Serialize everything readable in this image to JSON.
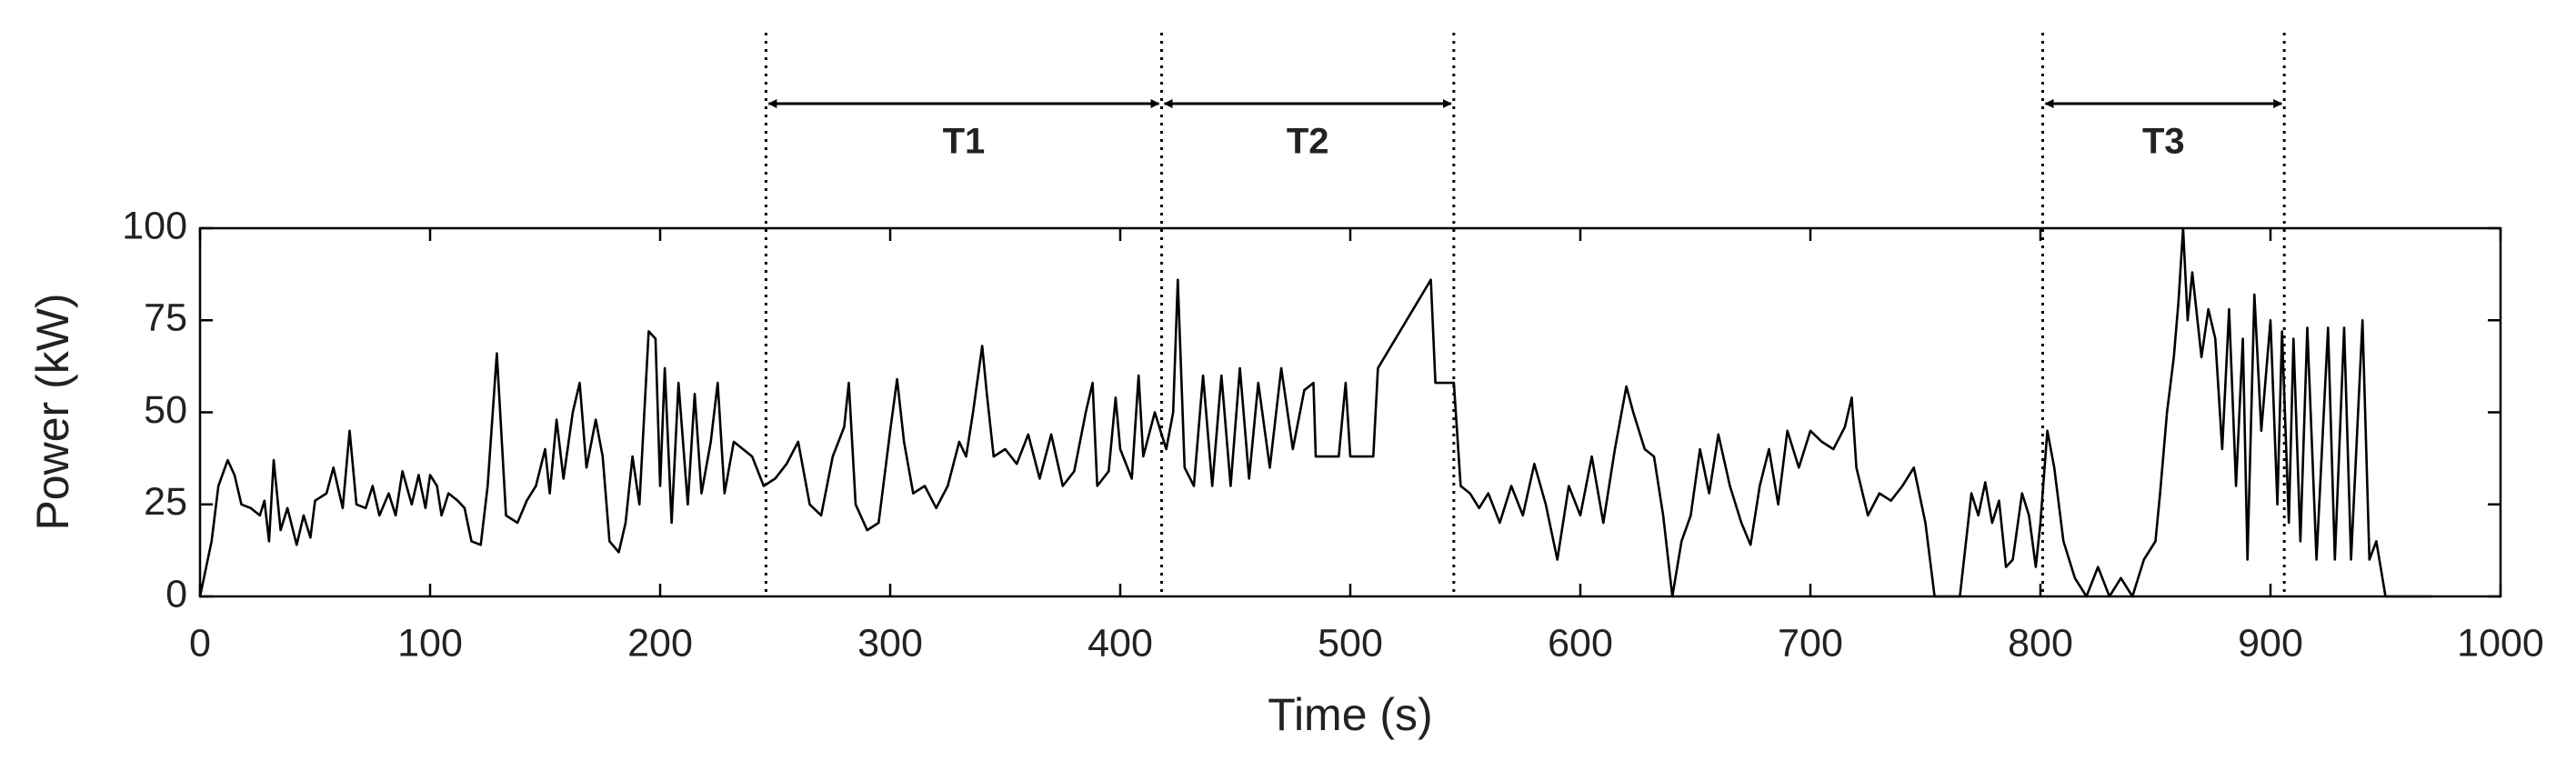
{
  "chart_data": {
    "type": "line",
    "xlabel": "Time (s)",
    "ylabel": "Power (kW)",
    "color": "#000000",
    "x": [
      0,
      5,
      8,
      12,
      15,
      18,
      22,
      26,
      28,
      30,
      32,
      35,
      38,
      42,
      45,
      48,
      50,
      55,
      58,
      62,
      65,
      68,
      72,
      75,
      78,
      82,
      85,
      88,
      92,
      95,
      98,
      100,
      103,
      105,
      108,
      112,
      115,
      118,
      122,
      125,
      129,
      133,
      138,
      142,
      146,
      150,
      152,
      155,
      158,
      162,
      165,
      168,
      172,
      175,
      178,
      182,
      185,
      188,
      191,
      195,
      198,
      200,
      202,
      205,
      208,
      212,
      215,
      218,
      222,
      225,
      228,
      232,
      236,
      240,
      245,
      250,
      255,
      260,
      265,
      270,
      275,
      280,
      282,
      285,
      290,
      295,
      300,
      303,
      306,
      310,
      315,
      320,
      325,
      330,
      333,
      336,
      340,
      342,
      345,
      350,
      355,
      360,
      365,
      370,
      375,
      380,
      385,
      388,
      390,
      395,
      398,
      400,
      405,
      408,
      410,
      415,
      418,
      420,
      423,
      425,
      428,
      432,
      436,
      440,
      444,
      448,
      452,
      456,
      460,
      465,
      470,
      475,
      480,
      484,
      485,
      495,
      498,
      500,
      510,
      512,
      535,
      537,
      545,
      548,
      552,
      556,
      560,
      565,
      570,
      575,
      580,
      585,
      590,
      595,
      600,
      605,
      610,
      615,
      620,
      623,
      628,
      632,
      636,
      640,
      644,
      648,
      652,
      656,
      660,
      665,
      670,
      674,
      678,
      682,
      686,
      690,
      695,
      700,
      705,
      710,
      715,
      718,
      720,
      725,
      730,
      735,
      740,
      745,
      750,
      754,
      765,
      770,
      773,
      776,
      779,
      782,
      785,
      788,
      792,
      795,
      798,
      800,
      803,
      806,
      810,
      815,
      820,
      825,
      830,
      835,
      840,
      845,
      850,
      852,
      855,
      858,
      860,
      862,
      864,
      866,
      870,
      873,
      876,
      879,
      882,
      885,
      888,
      890,
      893,
      896,
      900,
      903,
      905,
      908,
      910,
      913,
      916,
      920,
      925,
      928,
      932,
      935,
      940,
      943,
      946,
      950,
      970
    ],
    "values": [
      0,
      15,
      30,
      37,
      33,
      25,
      24,
      22,
      26,
      15,
      37,
      18,
      24,
      14,
      22,
      16,
      26,
      28,
      35,
      24,
      45,
      25,
      24,
      30,
      22,
      28,
      22,
      34,
      25,
      33,
      24,
      33,
      30,
      22,
      28,
      26,
      24,
      15,
      14,
      30,
      66,
      22,
      20,
      26,
      30,
      40,
      28,
      48,
      32,
      50,
      58,
      35,
      48,
      38,
      15,
      12,
      20,
      38,
      25,
      72,
      70,
      30,
      62,
      20,
      58,
      25,
      55,
      28,
      42,
      58,
      28,
      42,
      40,
      38,
      30,
      32,
      36,
      42,
      25,
      22,
      38,
      46,
      58,
      25,
      18,
      20,
      45,
      59,
      42,
      28,
      30,
      24,
      30,
      42,
      38,
      50,
      68,
      55,
      38,
      40,
      36,
      44,
      32,
      44,
      30,
      34,
      50,
      58,
      30,
      34,
      54,
      40,
      32,
      60,
      38,
      50,
      44,
      40,
      50,
      86,
      35,
      30,
      60,
      30,
      60,
      30,
      62,
      32,
      58,
      35,
      62,
      40,
      56,
      58,
      38,
      38,
      58,
      38,
      38,
      62,
      86,
      58,
      58,
      30,
      28,
      24,
      28,
      20,
      30,
      22,
      36,
      25,
      10,
      30,
      22,
      38,
      20,
      40,
      57,
      50,
      40,
      38,
      22,
      0,
      15,
      22,
      40,
      28,
      44,
      30,
      20,
      14,
      30,
      40,
      25,
      45,
      35,
      45,
      42,
      40,
      46,
      54,
      35,
      22,
      28,
      26,
      30,
      35,
      20,
      0,
      0,
      28,
      22,
      31,
      20,
      26,
      8,
      10,
      28,
      22,
      8,
      20,
      45,
      35,
      15,
      5,
      0,
      8,
      0,
      5,
      0,
      10,
      15,
      28,
      50,
      65,
      80,
      100,
      75,
      88,
      65,
      78,
      70,
      40,
      78,
      30,
      70,
      10,
      82,
      45,
      75,
      25,
      72,
      20,
      70,
      15,
      73,
      10,
      73,
      10,
      73,
      10,
      75,
      10,
      15,
      0,
      0
    ],
    "xlim": [
      0,
      1000
    ],
    "ylim": [
      0,
      100
    ],
    "xticks": [
      0,
      100,
      200,
      300,
      400,
      500,
      600,
      700,
      800,
      900,
      1000
    ],
    "yticks": [
      0,
      25,
      50,
      75,
      100
    ],
    "annotations": [
      {
        "label": "T1",
        "start": 246,
        "end": 418
      },
      {
        "label": "T2",
        "start": 418,
        "end": 545
      },
      {
        "label": "T3",
        "start": 801,
        "end": 906
      }
    ]
  }
}
